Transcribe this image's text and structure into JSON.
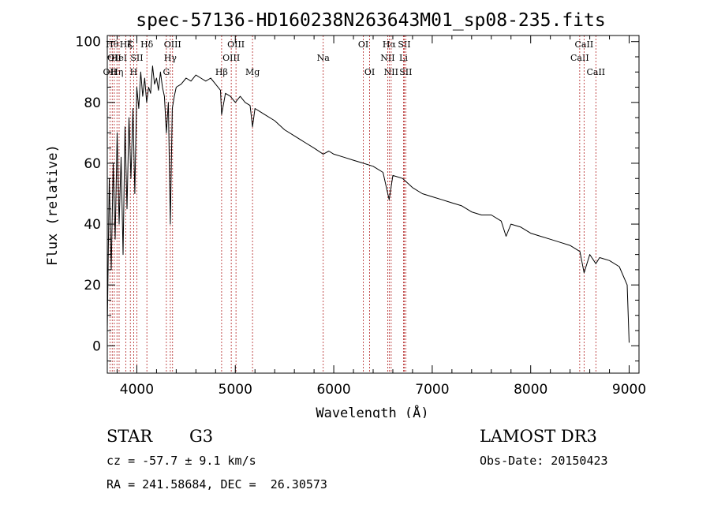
{
  "chart_data": {
    "type": "line",
    "title": "spec-57136-HD160238N263643M01_sp08-235.fits",
    "xlabel": "Wavelength (Å)",
    "ylabel": "Flux (relative)",
    "xlim": [
      3700,
      9100
    ],
    "ylim": [
      -9,
      102
    ],
    "xticks": [
      4000,
      5000,
      6000,
      7000,
      8000,
      9000
    ],
    "yticks": [
      0,
      20,
      40,
      60,
      80,
      100
    ],
    "series": [
      {
        "name": "flux",
        "x": [
          3700,
          3720,
          3740,
          3760,
          3780,
          3800,
          3820,
          3840,
          3860,
          3880,
          3900,
          3920,
          3940,
          3960,
          3980,
          4000,
          4020,
          4040,
          4060,
          4080,
          4100,
          4120,
          4140,
          4160,
          4180,
          4200,
          4220,
          4240,
          4260,
          4280,
          4300,
          4320,
          4340,
          4360,
          4380,
          4400,
          4450,
          4500,
          4550,
          4600,
          4650,
          4700,
          4750,
          4800,
          4850,
          4861,
          4900,
          4950,
          5000,
          5050,
          5100,
          5150,
          5175,
          5200,
          5250,
          5300,
          5400,
          5500,
          5600,
          5700,
          5800,
          5893,
          5950,
          6000,
          6100,
          6200,
          6300,
          6400,
          6500,
          6563,
          6600,
          6700,
          6800,
          6900,
          7000,
          7100,
          7200,
          7300,
          7400,
          7500,
          7600,
          7700,
          7750,
          7800,
          7900,
          8000,
          8100,
          8200,
          8300,
          8400,
          8500,
          8542,
          8600,
          8662,
          8700,
          8800,
          8900,
          8980,
          9000
        ],
        "y": [
          5,
          55,
          25,
          60,
          35,
          70,
          40,
          62,
          30,
          72,
          45,
          75,
          55,
          78,
          50,
          85,
          78,
          90,
          82,
          88,
          80,
          85,
          83,
          92,
          86,
          88,
          84,
          90,
          85,
          82,
          70,
          80,
          40,
          78,
          82,
          85,
          86,
          88,
          87,
          89,
          88,
          87,
          88,
          86,
          84,
          76,
          83,
          82,
          80,
          82,
          80,
          79,
          72,
          78,
          77,
          76,
          74,
          71,
          69,
          67,
          65,
          63,
          64,
          63,
          62,
          61,
          60,
          59,
          57,
          48,
          56,
          55,
          52,
          50,
          49,
          48,
          47,
          46,
          44,
          43,
          43,
          41,
          36,
          40,
          39,
          37,
          36,
          35,
          34,
          33,
          31,
          24,
          30,
          27,
          29,
          28,
          26,
          20,
          1
        ]
      }
    ],
    "lines": [
      {
        "x": 3727,
        "label": "OII",
        "row": 2
      },
      {
        "x": 3750,
        "label": "Hθ",
        "row": 0
      },
      {
        "x": 3771,
        "label": "OII",
        "row": 1
      },
      {
        "x": 3798,
        "label": "Hη",
        "row": 2
      },
      {
        "x": 3820,
        "label": "HeI",
        "row": 1
      },
      {
        "x": 3889,
        "label": "Hζ",
        "row": 0
      },
      {
        "x": 3934,
        "label": "K",
        "row": 0
      },
      {
        "x": 3968,
        "label": "H",
        "row": 2
      },
      {
        "x": 4000,
        "label": "SII",
        "row": 1
      },
      {
        "x": 4102,
        "label": "Hδ",
        "row": 0
      },
      {
        "x": 4300,
        "label": "G",
        "row": 2
      },
      {
        "x": 4340,
        "label": "Hγ",
        "row": 1
      },
      {
        "x": 4363,
        "label": "OIII",
        "row": 0
      },
      {
        "x": 4861,
        "label": "Hβ",
        "row": 2
      },
      {
        "x": 4959,
        "label": "OIII",
        "row": 1
      },
      {
        "x": 5007,
        "label": "OIII",
        "row": 0
      },
      {
        "x": 5175,
        "label": "Mg",
        "row": 2
      },
      {
        "x": 5893,
        "label": "Na",
        "row": 1
      },
      {
        "x": 6300,
        "label": "OI",
        "row": 0
      },
      {
        "x": 6364,
        "label": "OI",
        "row": 2
      },
      {
        "x": 6548,
        "label": "NII",
        "row": 1
      },
      {
        "x": 6563,
        "label": "Hα",
        "row": 0
      },
      {
        "x": 6583,
        "label": "NII",
        "row": 2
      },
      {
        "x": 6708,
        "label": "Li",
        "row": 1
      },
      {
        "x": 6716,
        "label": "SII",
        "row": 0
      },
      {
        "x": 6731,
        "label": "SII",
        "row": 2
      },
      {
        "x": 8498,
        "label": "CaII",
        "row": 1
      },
      {
        "x": 8542,
        "label": "CaII",
        "row": 0
      },
      {
        "x": 8662,
        "label": "CaII",
        "row": 2
      }
    ]
  },
  "info": {
    "object_class": "STAR",
    "subclass": "G3",
    "survey": "LAMOST DR3",
    "cz": "cz = -57.7 ± 9.1 km/s",
    "obs_date": "Obs-Date: 20150423",
    "coords": "RA = 241.58684, DEC =  26.30573"
  },
  "colors": {
    "line_marker": "#b22222",
    "spectrum": "#000000",
    "axes": "#000000"
  }
}
